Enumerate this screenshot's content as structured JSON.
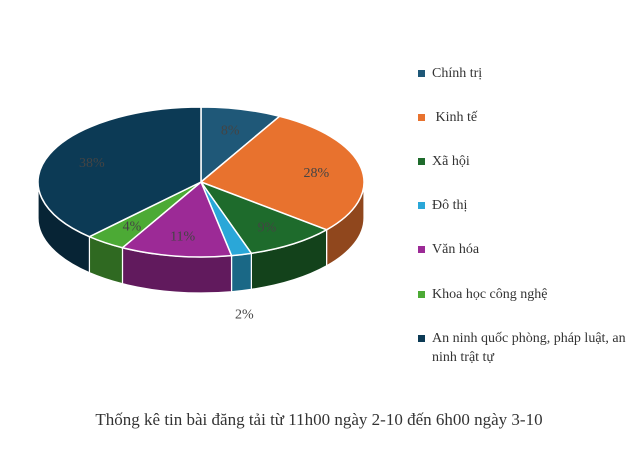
{
  "chart_data": {
    "type": "pie",
    "subtype": "3d",
    "title": "Thống kê tin bài đăng tải từ 11h00 ngày 2-10 đến 6h00 ngày 3-10",
    "categories": [
      "Chính trị",
      " Kinh tế",
      "Xã hội",
      "Đô thị",
      "Văn hóa",
      "Khoa học công nghệ",
      "An ninh quốc phòng, pháp luật, an ninh trật tự"
    ],
    "values": [
      8,
      28,
      9,
      2,
      11,
      4,
      38
    ],
    "value_labels": [
      "8%",
      "28%",
      "9%",
      "2%",
      "11%",
      "4%",
      "38%"
    ],
    "colors": [
      "#1f5878",
      "#e8722e",
      "#1e6b2c",
      "#2aa7d8",
      "#9c2a96",
      "#4caa35",
      "#0c3a55"
    ],
    "legend_position": "right"
  }
}
